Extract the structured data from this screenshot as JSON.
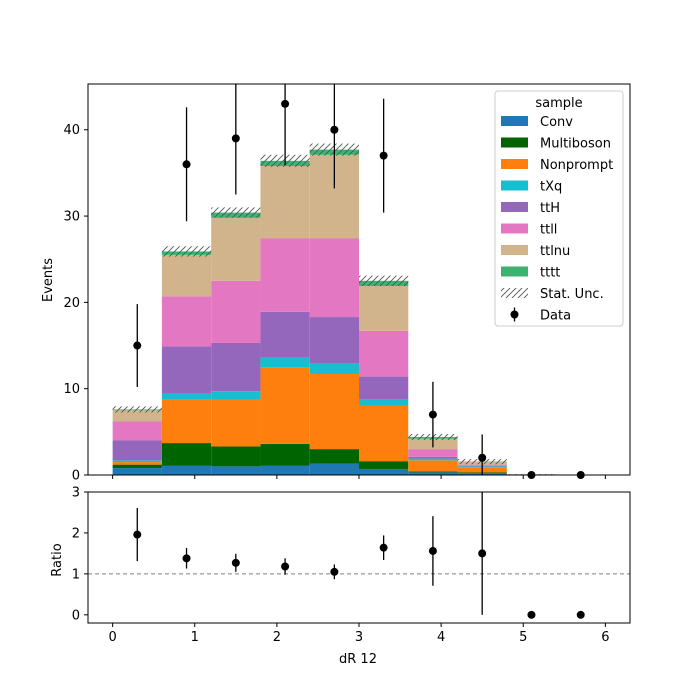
{
  "chart_data": [
    {
      "type": "bar",
      "stacked": true,
      "title": "",
      "xlabel": "",
      "ylabel": "Events",
      "xlim": [
        -0.3,
        6.3
      ],
      "ylim": [
        0,
        45.3
      ],
      "x_ticks": [
        0,
        1,
        2,
        3,
        4,
        5,
        6
      ],
      "y_ticks": [
        0,
        10,
        20,
        30,
        40
      ],
      "bin_edges": [
        0,
        0.6,
        1.2,
        1.8,
        2.4,
        3.0,
        3.6,
        4.2,
        4.8,
        5.4,
        6.0
      ],
      "legend": {
        "title": "sample",
        "placement": "top-right"
      },
      "series": [
        {
          "name": "Conv",
          "color": "#1f77b4",
          "values": [
            0.8,
            1.1,
            1.0,
            1.1,
            1.3,
            0.7,
            0.3,
            0.2,
            0,
            0
          ]
        },
        {
          "name": "Multiboson",
          "color": "#006400",
          "values": [
            0.4,
            2.6,
            2.3,
            2.5,
            1.7,
            0.9,
            0.1,
            0.1,
            0,
            0
          ]
        },
        {
          "name": "Nonprompt",
          "color": "#ff7f0e",
          "values": [
            0.3,
            5.1,
            5.4,
            8.9,
            8.7,
            6.4,
            1.3,
            0.6,
            0.03,
            0
          ]
        },
        {
          "name": "tXq",
          "color": "#17becf",
          "values": [
            0.2,
            0.7,
            1.0,
            1.1,
            1.2,
            0.8,
            0.2,
            0.1,
            0,
            0
          ]
        },
        {
          "name": "ttH",
          "color": "#9467bd",
          "values": [
            2.3,
            5.4,
            5.6,
            5.3,
            5.4,
            2.6,
            0.2,
            0.05,
            0.02,
            0
          ]
        },
        {
          "name": "ttll",
          "color": "#e377c2",
          "values": [
            2.2,
            5.8,
            7.2,
            8.5,
            9.1,
            5.3,
            0.9,
            0.15,
            0.02,
            0
          ]
        },
        {
          "name": "ttlnu",
          "color": "#d2b48c",
          "values": [
            1.3,
            4.8,
            7.3,
            8.4,
            9.7,
            5.2,
            1.2,
            0.3,
            0.01,
            0
          ]
        },
        {
          "name": "tttt",
          "color": "#3cb371",
          "values": [
            0.1,
            0.4,
            0.6,
            0.6,
            0.6,
            0.6,
            0.2,
            0.05,
            0,
            0
          ]
        }
      ],
      "stat_unc": {
        "name": "Stat. Unc.",
        "half_width": [
          0.35,
          0.6,
          0.6,
          0.7,
          0.7,
          0.6,
          0.35,
          0.3,
          0.02,
          0
        ]
      },
      "data": {
        "name": "Data",
        "x": [
          0.3,
          0.9,
          1.5,
          2.1,
          2.7,
          3.3,
          3.9,
          4.5,
          5.1,
          5.7
        ],
        "y": [
          15,
          36,
          39,
          43,
          40,
          37,
          7,
          2,
          0,
          0
        ],
        "yerr": [
          4.8,
          6.6,
          6.5,
          7.1,
          6.8,
          6.6,
          3.8,
          2.7,
          0,
          0
        ]
      }
    },
    {
      "type": "scatter",
      "title": "",
      "xlabel": "dR 12",
      "ylabel": "Ratio",
      "xlim": [
        -0.3,
        6.3
      ],
      "ylim": [
        -0.2,
        3.0
      ],
      "x_ticks": [
        0,
        1,
        2,
        3,
        4,
        5,
        6
      ],
      "y_ticks": [
        0,
        1,
        2,
        3
      ],
      "reference_line": 1,
      "x": [
        0.3,
        0.9,
        1.5,
        2.1,
        2.7,
        3.3,
        3.9,
        4.5,
        5.1,
        5.7
      ],
      "y": [
        1.96,
        1.38,
        1.27,
        1.18,
        1.05,
        1.64,
        1.56,
        1.5,
        0,
        0
      ],
      "yerr": [
        0.65,
        0.25,
        0.22,
        0.2,
        0.18,
        0.3,
        0.85,
        1.5,
        0,
        0
      ]
    }
  ]
}
